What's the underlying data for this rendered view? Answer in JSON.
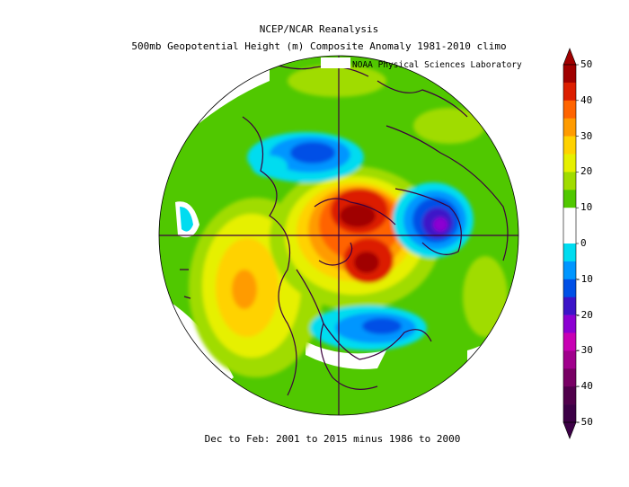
{
  "title_line1": "NCEP/NCAR Reanalysis",
  "title_line2": "500mb Geopotential Height (m) Composite Anomaly 1981-2010 climo",
  "credit": "NOAA Physical Sciences Laboratory",
  "footer": "Dec to Feb: 2001 to 2015 minus 1986 to 2000",
  "colorbar": {
    "ticks": [
      "50",
      "40",
      "30",
      "20",
      "10",
      "0",
      "-10",
      "-20",
      "-30",
      "-40",
      "-50"
    ],
    "colors": [
      "#a00000",
      "#dc1e00",
      "#ff6400",
      "#ff9b00",
      "#ffd200",
      "#e6f000",
      "#a0dc00",
      "#50c800",
      "#ffffff",
      "#ffffff",
      "#00dcf0",
      "#0096ff",
      "#0050e6",
      "#3c14c8",
      "#8c00d2",
      "#c800b4",
      "#a0008c",
      "#780064",
      "#50004b",
      "#3c0046"
    ]
  },
  "map": {
    "projection": "north polar stereographic",
    "land_color": "#3c003c",
    "background": "#ffffff"
  }
}
